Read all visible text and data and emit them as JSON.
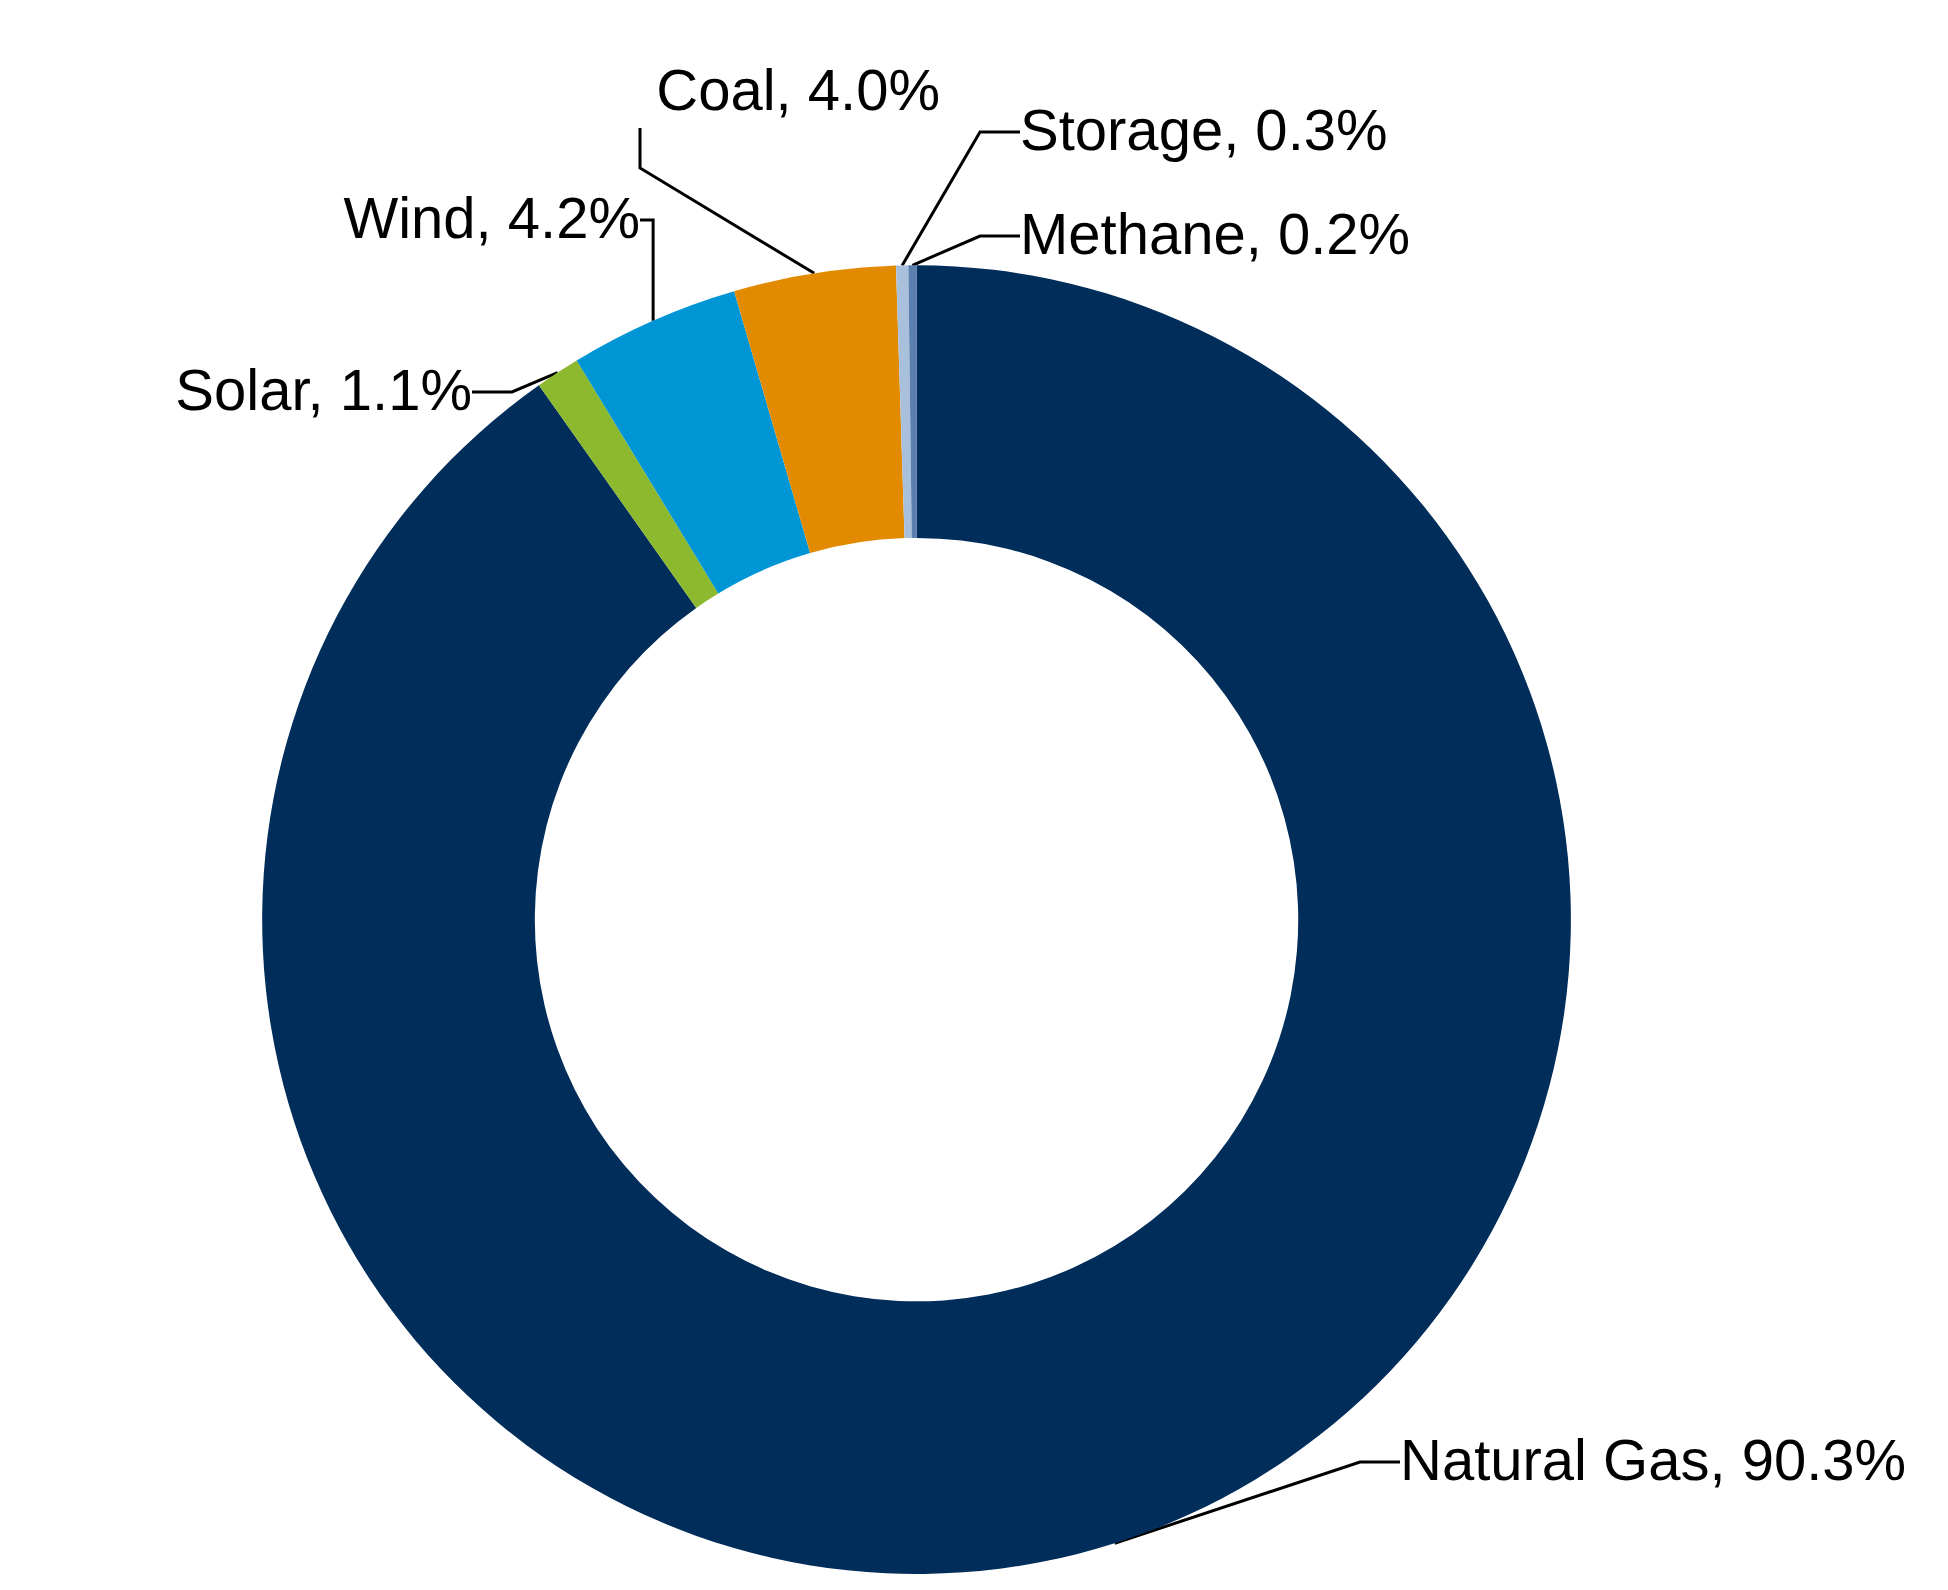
{
  "chart_data": {
    "type": "donut",
    "categories": [
      "Natural Gas",
      "Solar",
      "Wind",
      "Coal",
      "Storage",
      "Methane"
    ],
    "values": [
      90.3,
      1.1,
      4.2,
      4.0,
      0.3,
      0.2
    ],
    "value_labels": [
      "90.3%",
      "1.1%",
      "4.2%",
      "4.0%",
      "0.3%",
      "0.2%"
    ],
    "colors": [
      "#002d5a",
      "#8db92e",
      "#0096d6",
      "#e38b00",
      "#a9c0dd",
      "#5b7fae"
    ],
    "legend": false
  }
}
